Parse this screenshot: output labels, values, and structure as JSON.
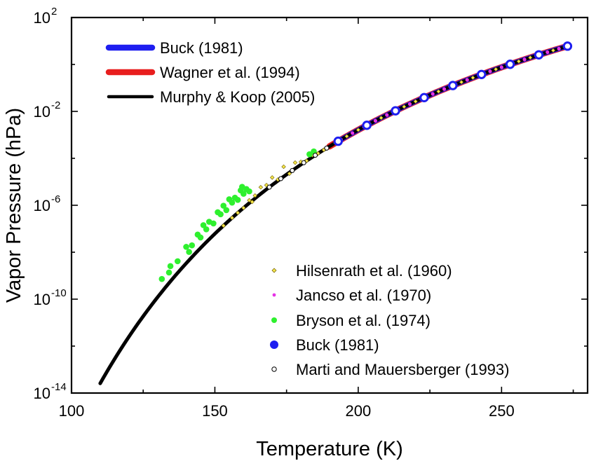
{
  "chart_data": {
    "type": "line",
    "title": "",
    "xlabel": "Temperature (K)",
    "ylabel": "Vapor Pressure (hPa)",
    "x_scale": "linear",
    "y_scale": "log",
    "xlim": [
      100,
      280
    ],
    "ylim_exponents": [
      -14,
      2
    ],
    "x_ticks": [
      "100",
      "150",
      "200",
      "250"
    ],
    "x_tick_values": [
      100,
      150,
      200,
      250
    ],
    "y_ticks": [
      {
        "base": "10",
        "exp": "-14",
        "value": -14
      },
      {
        "base": "10",
        "exp": "-10",
        "value": -10
      },
      {
        "base": "10",
        "exp": "-6",
        "value": -6
      },
      {
        "base": "10",
        "exp": "-2",
        "value": -2
      },
      {
        "base": "10",
        "exp": "2",
        "value": 2
      }
    ],
    "grid": false,
    "legend_top": [
      {
        "label": "Buck (1981)",
        "color": "#1e1ef0"
      },
      {
        "label": "Wagner et al. (1994)",
        "color": "#e81e1e"
      },
      {
        "label": "Murphy & Koop (2005)",
        "color": "#000000"
      }
    ],
    "legend_bottom": [
      {
        "label": "Hilsenrath et al. (1960)",
        "marker": "small-diamond",
        "color": "#f5e64a"
      },
      {
        "label": "Jancso et al. (1970)",
        "marker": "small-dot",
        "color": "#e632e6"
      },
      {
        "label": "Bryson et al. (1974)",
        "marker": "dot",
        "color": "#2ef02e"
      },
      {
        "label": "Buck (1981)",
        "marker": "large-dot",
        "color": "#1e1ef0"
      },
      {
        "label": "Marti and Mauersberger (1993)",
        "marker": "open-circle",
        "color": "#000000"
      }
    ],
    "series": [
      {
        "name": "Murphy & Koop (2005)",
        "kind": "line",
        "color": "#000000",
        "x_range": [
          110,
          273.16
        ]
      },
      {
        "name": "Wagner et al. (1994)",
        "kind": "line",
        "color": "#e81e1e",
        "x_range": [
          190,
          273.16
        ]
      },
      {
        "name": "Buck (1981)",
        "kind": "line",
        "color": "#1e1ef0",
        "x_range": [
          193,
          273.16
        ]
      },
      {
        "name": "Jancso et al. (1970)",
        "kind": "points",
        "color": "#e632e6",
        "x": [
          194,
          198,
          202,
          206,
          210,
          214,
          218,
          222,
          226,
          230,
          234,
          238,
          242,
          246,
          250,
          254,
          258,
          262,
          266,
          270,
          273
        ]
      },
      {
        "name": "Hilsenrath et al. (1960)",
        "kind": "points",
        "color": "#f5e64a",
        "x": [
          153,
          156,
          158,
          160,
          162,
          163,
          164,
          166,
          168,
          170,
          172,
          174,
          176,
          178,
          180,
          182,
          184,
          186,
          188,
          192,
          196,
          200,
          204,
          208,
          212,
          216,
          220,
          224,
          228,
          232,
          236,
          240,
          244,
          248,
          252,
          256,
          260,
          264,
          268,
          272
        ],
        "offset_decades": [
          0,
          0,
          0,
          0,
          0.12,
          -0.05,
          0.12,
          0.28,
          0.18,
          0.32,
          0.05,
          0.42,
          -0.05,
          0.25,
          0.12,
          0,
          0.08,
          0,
          0,
          0,
          0,
          0,
          0,
          0,
          0,
          0,
          0,
          0,
          0,
          0,
          0,
          0,
          0,
          0,
          0,
          0,
          0,
          0,
          0,
          0
        ]
      },
      {
        "name": "Bryson et al. (1974)",
        "kind": "points",
        "color": "#2ef02e",
        "x": [
          131.5,
          134,
          134.5,
          137,
          140,
          141,
          142,
          144,
          145,
          146,
          147,
          148,
          149.5,
          151,
          152,
          153,
          154,
          155,
          156,
          157,
          158,
          159,
          159.5,
          160,
          161,
          162,
          183,
          184.5
        ],
        "offset_decades": [
          0.55,
          0.45,
          0.65,
          0.5,
          0.7,
          0.35,
          0.5,
          0.7,
          0.45,
          0.85,
          0.55,
          0.75,
          0.5,
          0.8,
          0.6,
          0.85,
          0.55,
          0.9,
          0.65,
          0.75,
          0.55,
          0.85,
          0.95,
          0.6,
          0.7,
          0.5,
          0.2,
          0.2
        ]
      },
      {
        "name": "Marti and Mauersberger (1993)",
        "kind": "points",
        "color": "#000000",
        "x": [
          169,
          173,
          177,
          181,
          185,
          189
        ]
      },
      {
        "name": "Buck (1981)",
        "kind": "points",
        "color": "#1e1ef0",
        "x": [
          193,
          203,
          213,
          223,
          233,
          243,
          253,
          263,
          273
        ]
      }
    ]
  }
}
